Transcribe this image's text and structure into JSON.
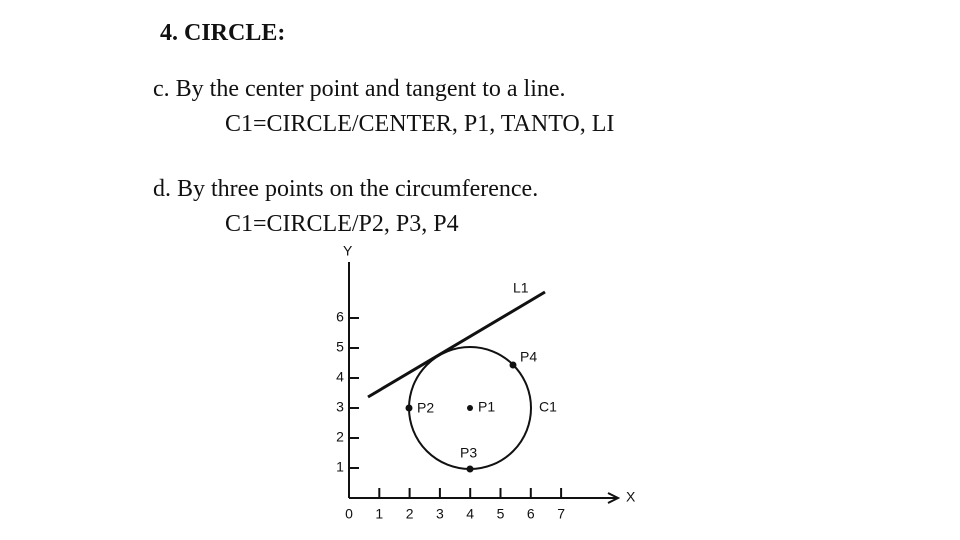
{
  "header": {
    "title": "4. CIRCLE:"
  },
  "items": [
    {
      "text": "c. By the center point and tangent to a line.",
      "code": "C1=CIRCLE/CENTER, P1, TANTO, LI"
    },
    {
      "text": "d. By three points on the circumference.",
      "code": "C1=CIRCLE/P2, P3, P4"
    }
  ],
  "diagram": {
    "y_axis_label": "Y",
    "x_axis_label": "X",
    "x_ticks": [
      "0",
      "1",
      "2",
      "3",
      "4",
      "5",
      "6",
      "7"
    ],
    "y_ticks": [
      "1",
      "2",
      "3",
      "4",
      "5",
      "6"
    ],
    "line_label": "L1",
    "circle_label": "C1",
    "points": [
      "P1",
      "P2",
      "P3",
      "P4"
    ]
  }
}
